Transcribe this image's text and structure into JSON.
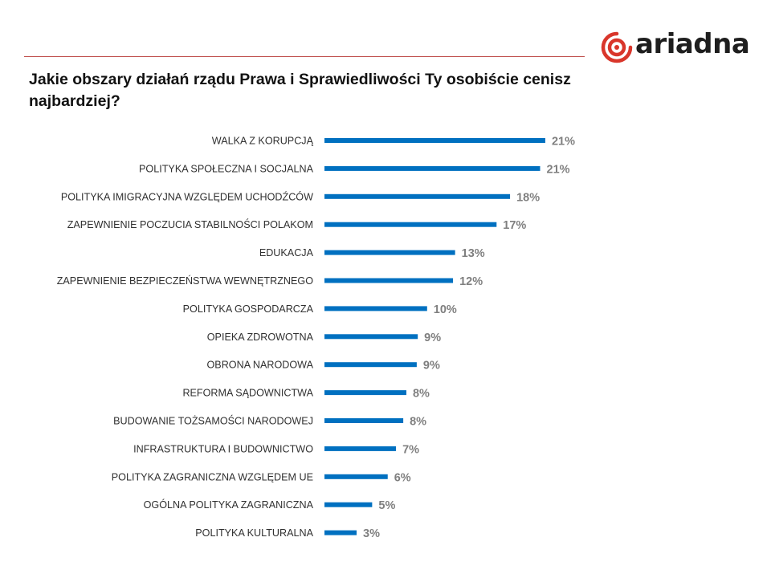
{
  "title": "Jakie obszary działań rządu Prawa i Sprawiedliwości Ty osobiście cenisz najbardziej?",
  "logo": {
    "text": "ariadna"
  },
  "colors": {
    "bar": "#0070c0",
    "rule": "#c0504d",
    "logo_accent": "#d9362b",
    "value_text": "#7f7f7f"
  },
  "chart_data": {
    "type": "bar",
    "orientation": "horizontal",
    "title": "Jakie obszary działań rządu Prawa i Sprawiedliwości Ty osobiście cenisz najbardziej?",
    "xlim": [
      0,
      22
    ],
    "unit": "%",
    "grid": false,
    "legend": "none",
    "categories": [
      "WALKA Z KORUPCJĄ",
      "POLITYKA SPOŁECZNA I SOCJALNA",
      "POLITYKA IMIGRACYJNA WZGLĘDEM UCHODŹCÓW",
      "ZAPEWNIENIE POCZUCIA STABILNOŚCI POLAKOM",
      "EDUKACJA",
      "ZAPEWNIENIE BEZPIECZEŃSTWA WEWNĘTRZNEGO",
      "POLITYKA GOSPODARCZA",
      "OPIEKA ZDROWOTNA",
      "OBRONA NARODOWA",
      "REFORMA SĄDOWNICTWA",
      "BUDOWANIE TOŻSAMOŚCI NARODOWEJ",
      "INFRASTRUKTURA I BUDOWNICTWO",
      "POLITYKA ZAGRANICZNA WZGLĘDEM UE",
      "OGÓLNA POLITYKA ZAGRANICZNA",
      "POLITYKA KULTURALNA"
    ],
    "values": [
      21.3,
      20.8,
      17.9,
      16.6,
      12.6,
      12.4,
      9.9,
      9.0,
      8.9,
      7.9,
      7.6,
      6.9,
      6.1,
      4.6,
      3.1
    ],
    "data_labels": [
      "21%",
      "21%",
      "18%",
      "17%",
      "13%",
      "12%",
      "10%",
      "9%",
      "9%",
      "8%",
      "8%",
      "7%",
      "6%",
      "5%",
      "3%"
    ]
  }
}
